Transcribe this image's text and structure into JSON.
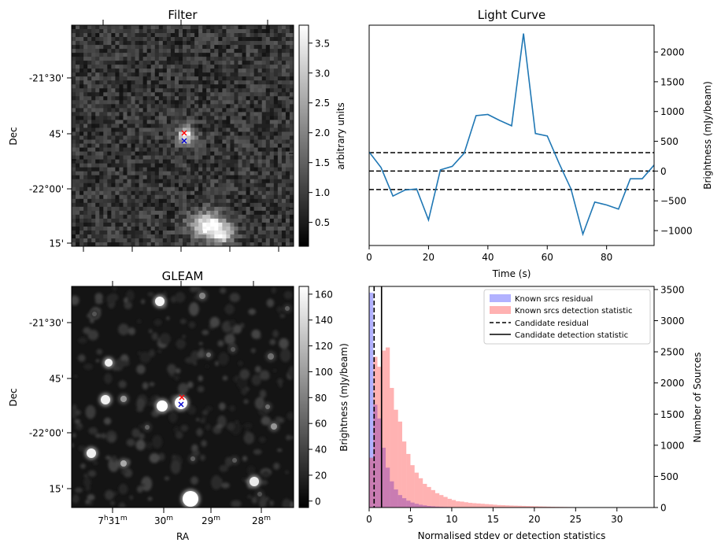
{
  "figure": {
    "filter": {
      "title": "Filter",
      "ylabel": "Dec",
      "dec_ticks": [
        "-21°30'",
        "45'",
        "-22°00'",
        "15'"
      ],
      "colorbar_label": "arbitrary units",
      "colorbar_ticks": [
        "0.5",
        "1.0",
        "1.5",
        "2.0",
        "2.5",
        "3.0",
        "3.5"
      ],
      "colorbar_range": [
        0.1,
        3.8
      ],
      "colormap": "gray"
    },
    "gleam": {
      "title": "GLEAM",
      "ylabel": "Dec",
      "xlabel": "RA",
      "dec_ticks": [
        "-21°30'",
        "45'",
        "-22°00'",
        "15'"
      ],
      "ra_ticks": [
        {
          "main": "7",
          "sup1": "h",
          "rest": "31",
          "sup2": "m"
        },
        {
          "main": "",
          "sup1": "",
          "rest": "30",
          "sup2": "m"
        },
        {
          "main": "",
          "sup1": "",
          "rest": "29",
          "sup2": "m"
        },
        {
          "main": "",
          "sup1": "",
          "rest": "28",
          "sup2": "m"
        }
      ],
      "colorbar_label": "Brightness (mJy/beam)",
      "colorbar_ticks": [
        "0",
        "20",
        "40",
        "60",
        "80",
        "100",
        "120",
        "140",
        "160"
      ],
      "colorbar_range": [
        -5,
        166
      ],
      "colormap": "gray"
    },
    "markers": {
      "red": "#ff0000",
      "blue": "#0000cc"
    }
  },
  "chart_data": [
    {
      "type": "line",
      "title": "Light Curve",
      "xlabel": "Time (s)",
      "ylabel": "Brightness (mJy/beam)",
      "xlim": [
        0,
        96
      ],
      "ylim": [
        -1250,
        2450
      ],
      "x_ticks": [
        0,
        20,
        40,
        60,
        80
      ],
      "y_ticks": [
        -1000,
        -500,
        0,
        500,
        1000,
        1500,
        2000
      ],
      "color": "#1f77b4",
      "x": [
        0,
        4,
        8,
        12,
        16,
        20,
        24,
        28,
        32,
        36,
        40,
        44,
        48,
        52,
        56,
        60,
        64,
        68,
        72,
        76,
        80,
        84,
        88,
        92,
        96
      ],
      "y": [
        320,
        60,
        -420,
        -320,
        -300,
        -820,
        20,
        80,
        300,
        930,
        950,
        850,
        760,
        2310,
        630,
        590,
        130,
        -300,
        -1060,
        -520,
        -570,
        -640,
        -130,
        -130,
        100
      ],
      "hlines": [
        {
          "y": 310,
          "style": "dashed",
          "color": "#000000"
        },
        {
          "y": 0,
          "style": "dashed",
          "color": "#000000"
        },
        {
          "y": -310,
          "style": "dashed",
          "color": "#000000"
        }
      ]
    },
    {
      "type": "bar",
      "xlabel": "Normalised stdev or detection statistics",
      "ylabel": "Number of Sources",
      "xlim": [
        0,
        34.5
      ],
      "ylim": [
        0,
        3550
      ],
      "x_ticks": [
        0,
        5,
        10,
        15,
        20,
        25,
        30
      ],
      "y_ticks": [
        0,
        500,
        1000,
        1500,
        2000,
        2500,
        3000,
        3500
      ],
      "bin_width": 0.5,
      "legend_position": "top-right",
      "series": [
        {
          "name": "Known srcs residual",
          "color": "#0000ff",
          "alpha": 0.3,
          "values": [
            3450,
            1650,
            1430,
            960,
            640,
            420,
            290,
            200,
            150,
            110,
            80,
            60,
            45,
            35,
            25,
            20,
            15,
            12,
            10,
            8,
            6
          ]
        },
        {
          "name": "Known srcs detection statistic",
          "color": "#ff0000",
          "alpha": 0.3,
          "values": [
            800,
            2420,
            2260,
            2520,
            2570,
            1920,
            1570,
            1380,
            1060,
            860,
            680,
            560,
            470,
            380,
            330,
            280,
            230,
            200,
            170,
            140,
            120,
            100,
            95,
            85,
            75,
            70,
            65,
            60,
            55,
            50,
            45,
            40,
            38,
            35,
            32,
            30,
            28,
            26,
            24,
            22,
            20,
            18,
            16,
            14,
            12,
            11,
            10,
            9,
            8,
            7,
            6,
            5,
            5,
            4,
            4,
            3,
            3,
            3,
            2,
            2,
            2,
            2,
            2,
            1,
            1,
            1
          ]
        }
      ],
      "vlines": [
        {
          "name": "Candidate residual",
          "x": 0.6,
          "style": "dashed",
          "color": "#000000"
        },
        {
          "name": "Candidate detection statistic",
          "x": 1.5,
          "style": "solid",
          "color": "#000000"
        }
      ]
    }
  ]
}
